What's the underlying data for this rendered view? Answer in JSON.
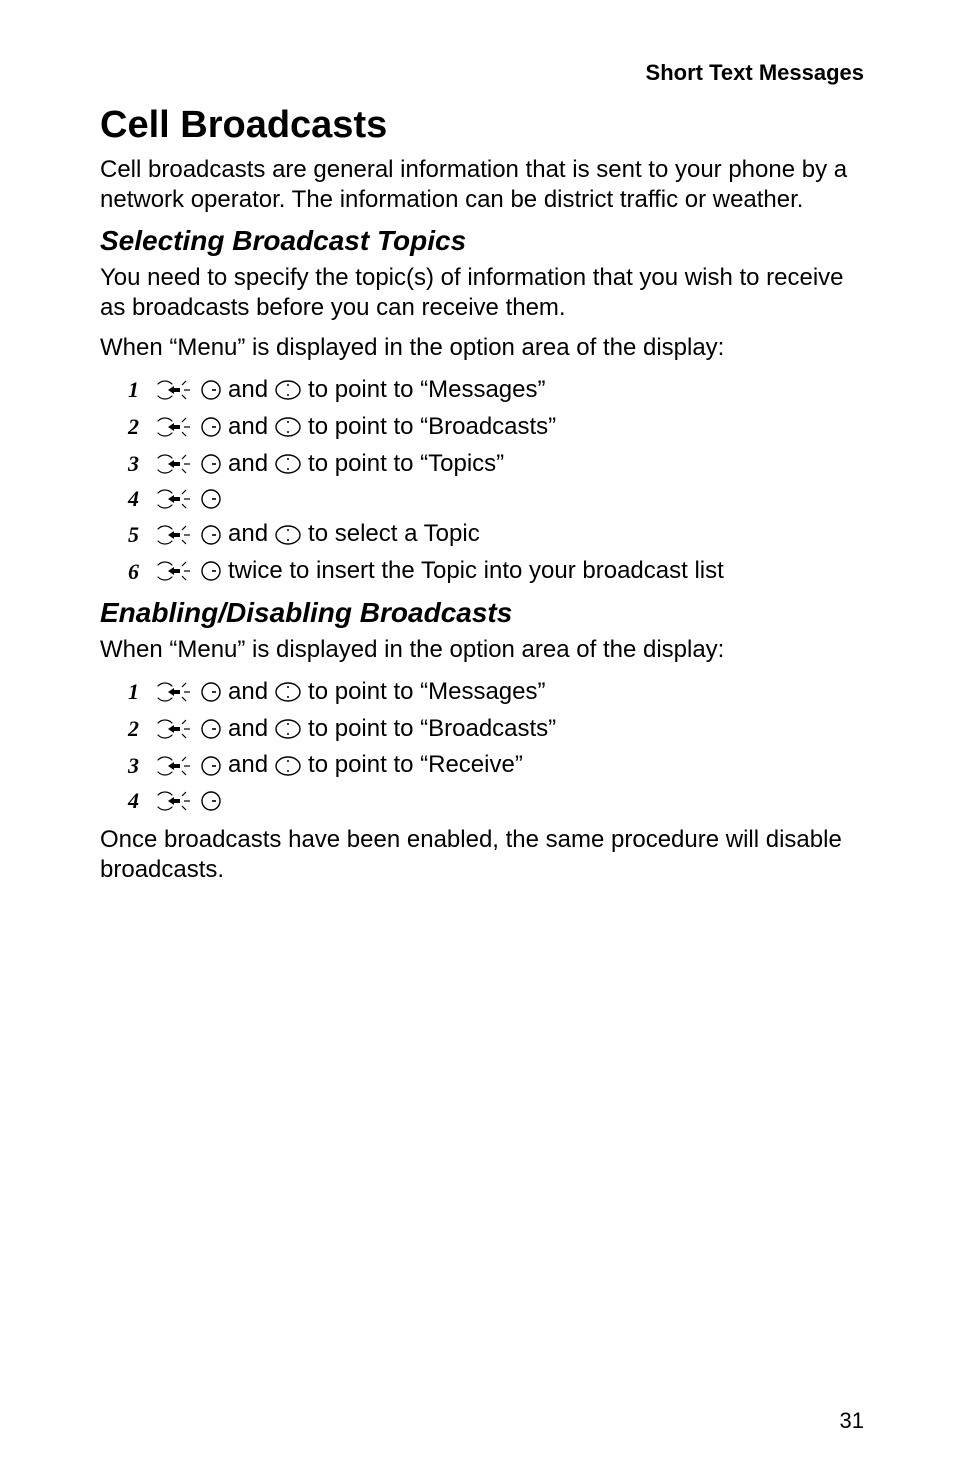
{
  "header": "Short Text Messages",
  "h1": "Cell Broadcasts",
  "intro": "Cell broadcasts are general information that is sent to your phone by a network operator. The information can be district traffic or weather.",
  "section1": {
    "title": "Selecting Broadcast Topics",
    "para1": "You need to specify the topic(s) of information that you wish to receive as broadcasts before you can receive them.",
    "para2": "When “Menu” is displayed in the option area of the display:",
    "steps": [
      {
        "num": "1",
        "pre": "",
        "icons": [
          "hand",
          "circle-dash",
          "and",
          "dial"
        ],
        "post": " to point to “Messages”"
      },
      {
        "num": "2",
        "pre": "",
        "icons": [
          "hand",
          "circle-dash",
          "and",
          "dial"
        ],
        "post": " to point to “Broadcasts”"
      },
      {
        "num": "3",
        "pre": "",
        "icons": [
          "hand",
          "circle-dash",
          "and",
          "dial"
        ],
        "post": " to point to “Topics”"
      },
      {
        "num": "4",
        "pre": "",
        "icons": [
          "hand",
          "circle-dash"
        ],
        "post": ""
      },
      {
        "num": "5",
        "pre": "",
        "icons": [
          "hand",
          "circle-dash",
          "and",
          "dial"
        ],
        "post": " to select a Topic"
      },
      {
        "num": "6",
        "pre": "",
        "icons": [
          "hand",
          "circle-dash"
        ],
        "post": " twice to insert the Topic into your broadcast list"
      }
    ]
  },
  "section2": {
    "title": "Enabling/Disabling Broadcasts",
    "para1": "When “Menu” is displayed in the option area of the display:",
    "steps": [
      {
        "num": "1",
        "pre": "",
        "icons": [
          "hand",
          "circle-dash",
          "and",
          "dial"
        ],
        "post": " to point to “Messages”"
      },
      {
        "num": "2",
        "pre": "",
        "icons": [
          "hand",
          "circle-dash",
          "and",
          "dial"
        ],
        "post": " to point to “Broadcasts”"
      },
      {
        "num": "3",
        "pre": "",
        "icons": [
          "hand",
          "circle-dash",
          "and",
          "dial"
        ],
        "post": " to point to “Receive”"
      },
      {
        "num": "4",
        "pre": "",
        "icons": [
          "hand",
          "circle-dash"
        ],
        "post": ""
      }
    ],
    "para2": "Once broadcasts have been enabled, the same procedure will disable broadcasts."
  },
  "pageNumber": "31",
  "andWord": " and ",
  "colors": {
    "text": "#000000",
    "background": "#ffffff"
  },
  "fonts": {
    "body": "Arial, Helvetica, sans-serif",
    "stepnum": "Times New Roman, serif"
  }
}
